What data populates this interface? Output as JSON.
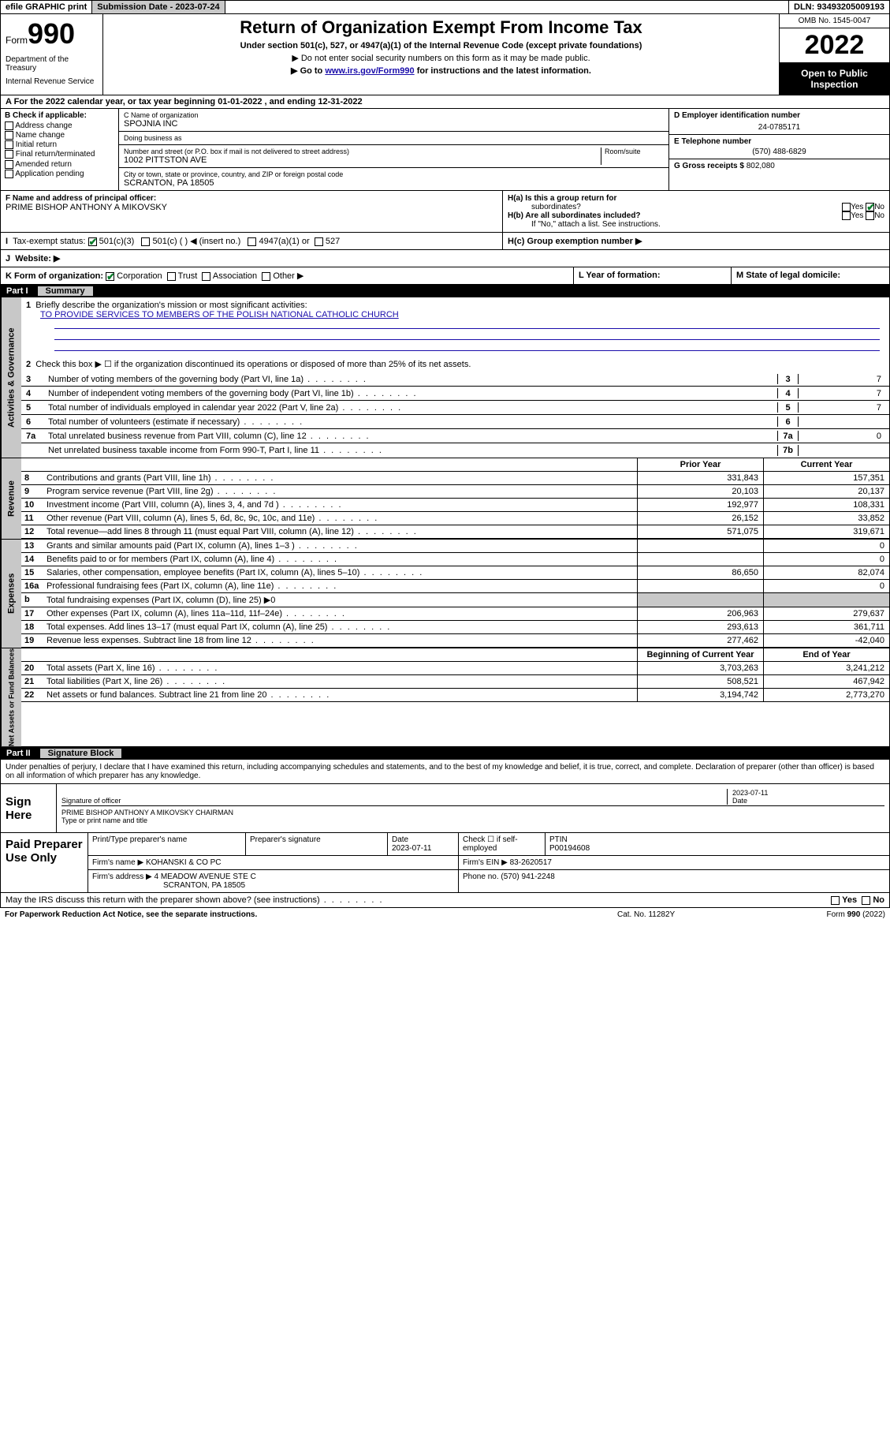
{
  "colors": {
    "accent_green": "#0a7d2c",
    "link": "#1a0dab",
    "gray_btn": "#c8c8c8",
    "black": "#000000",
    "white": "#ffffff"
  },
  "topbar": {
    "efile": "efile GRAPHIC print",
    "submission_label": "Submission Date - 2023-07-24",
    "dln": "DLN: 93493205009193"
  },
  "header": {
    "form_word": "Form",
    "form_number": "990",
    "dept": "Department of the Treasury",
    "irs": "Internal Revenue Service",
    "title": "Return of Organization Exempt From Income Tax",
    "subtitle": "Under section 501(c), 527, or 4947(a)(1) of the Internal Revenue Code (except private foundations)",
    "note1": "▶ Do not enter social security numbers on this form as it may be made public.",
    "note2_pre": "▶ Go to ",
    "note2_link": "www.irs.gov/Form990",
    "note2_post": " for instructions and the latest information.",
    "omb": "OMB No. 1545-0047",
    "year": "2022",
    "open": "Open to Public Inspection"
  },
  "lineA": "A For the 2022 calendar year, or tax year beginning 01-01-2022     , and ending 12-31-2022",
  "sectionB": {
    "label": "B Check if applicable:",
    "opts": [
      "Address change",
      "Name change",
      "Initial return",
      "Final return/terminated",
      "Amended return",
      "Application pending"
    ]
  },
  "sectionC": {
    "name_label": "C Name of organization",
    "name": "SPOJNIA INC",
    "dba_label": "Doing business as",
    "addr_label": "Number and street (or P.O. box if mail is not delivered to street address)",
    "room_label": "Room/suite",
    "addr": "1002 PITTSTON AVE",
    "city_label": "City or town, state or province, country, and ZIP or foreign postal code",
    "city": "SCRANTON, PA  18505"
  },
  "sectionD": {
    "label": "D Employer identification number",
    "val": "24-0785171"
  },
  "sectionE": {
    "label": "E Telephone number",
    "val": "(570) 488-6829"
  },
  "sectionG": {
    "label": "G Gross receipts $",
    "val": "802,080"
  },
  "sectionF": {
    "label": "F Name and address of principal officer:",
    "val": "PRIME BISHOP ANTHONY A MIKOVSKY"
  },
  "sectionH": {
    "a_label": "H(a)  Is this a group return for",
    "a_label2": "subordinates?",
    "a_yes": "Yes",
    "a_no": "No",
    "b_label": "H(b)  Are all subordinates included?",
    "b_yes": "Yes",
    "b_no": "No",
    "b_note": "If \"No,\" attach a list. See instructions.",
    "c_label": "H(c)  Group exemption number ▶"
  },
  "sectionI": {
    "label": "Tax-exempt status:",
    "opts": [
      "501(c)(3)",
      "501(c) (    ) ◀ (insert no.)",
      "4947(a)(1) or",
      "527"
    ]
  },
  "sectionJ": {
    "label": "Website: ▶"
  },
  "sectionK": {
    "label": "K Form of organization:",
    "opts": [
      "Corporation",
      "Trust",
      "Association",
      "Other ▶"
    ]
  },
  "sectionL": {
    "label": "L Year of formation:"
  },
  "sectionM": {
    "label": "M State of legal domicile:"
  },
  "partI": {
    "part": "Part I",
    "title": "Summary",
    "q1_label": "1",
    "q1_text": "Briefly describe the organization's mission or most significant activities:",
    "q1_mission": "TO PROVIDE SERVICES TO MEMBERS OF THE POLISH NATIONAL CATHOLIC CHURCH",
    "q2_label": "2",
    "q2_text": "Check this box ▶ ☐  if the organization discontinued its operations or disposed of more than 25% of its net assets.",
    "rows_gov": [
      {
        "n": "3",
        "t": "Number of voting members of the governing body (Part VI, line 1a)",
        "box": "3",
        "v": "7"
      },
      {
        "n": "4",
        "t": "Number of independent voting members of the governing body (Part VI, line 1b)",
        "box": "4",
        "v": "7"
      },
      {
        "n": "5",
        "t": "Total number of individuals employed in calendar year 2022 (Part V, line 2a)",
        "box": "5",
        "v": "7"
      },
      {
        "n": "6",
        "t": "Total number of volunteers (estimate if necessary)",
        "box": "6",
        "v": ""
      },
      {
        "n": "7a",
        "t": "Total unrelated business revenue from Part VIII, column (C), line 12",
        "box": "7a",
        "v": "0"
      },
      {
        "n": "",
        "t": "Net unrelated business taxable income from Form 990-T, Part I, line 11",
        "box": "7b",
        "v": ""
      }
    ],
    "col_prior": "Prior Year",
    "col_current": "Current Year",
    "rows_rev": [
      {
        "n": "8",
        "t": "Contributions and grants (Part VIII, line 1h)",
        "p": "331,843",
        "c": "157,351"
      },
      {
        "n": "9",
        "t": "Program service revenue (Part VIII, line 2g)",
        "p": "20,103",
        "c": "20,137"
      },
      {
        "n": "10",
        "t": "Investment income (Part VIII, column (A), lines 3, 4, and 7d )",
        "p": "192,977",
        "c": "108,331"
      },
      {
        "n": "11",
        "t": "Other revenue (Part VIII, column (A), lines 5, 6d, 8c, 9c, 10c, and 11e)",
        "p": "26,152",
        "c": "33,852"
      },
      {
        "n": "12",
        "t": "Total revenue—add lines 8 through 11 (must equal Part VIII, column (A), line 12)",
        "p": "571,075",
        "c": "319,671"
      }
    ],
    "rows_exp": [
      {
        "n": "13",
        "t": "Grants and similar amounts paid (Part IX, column (A), lines 1–3 )",
        "p": "",
        "c": "0"
      },
      {
        "n": "14",
        "t": "Benefits paid to or for members (Part IX, column (A), line 4)",
        "p": "",
        "c": "0"
      },
      {
        "n": "15",
        "t": "Salaries, other compensation, employee benefits (Part IX, column (A), lines 5–10)",
        "p": "86,650",
        "c": "82,074"
      },
      {
        "n": "16a",
        "t": "Professional fundraising fees (Part IX, column (A), line 11e)",
        "p": "",
        "c": "0"
      },
      {
        "n": "b",
        "t": "Total fundraising expenses (Part IX, column (D), line 25) ▶0",
        "p": "—",
        "c": "—"
      },
      {
        "n": "17",
        "t": "Other expenses (Part IX, column (A), lines 11a–11d, 11f–24e)",
        "p": "206,963",
        "c": "279,637"
      },
      {
        "n": "18",
        "t": "Total expenses. Add lines 13–17 (must equal Part IX, column (A), line 25)",
        "p": "293,613",
        "c": "361,711"
      },
      {
        "n": "19",
        "t": "Revenue less expenses. Subtract line 18 from line 12",
        "p": "277,462",
        "c": "-42,040"
      }
    ],
    "col_begin": "Beginning of Current Year",
    "col_end": "End of Year",
    "rows_net": [
      {
        "n": "20",
        "t": "Total assets (Part X, line 16)",
        "p": "3,703,263",
        "c": "3,241,212"
      },
      {
        "n": "21",
        "t": "Total liabilities (Part X, line 26)",
        "p": "508,521",
        "c": "467,942"
      },
      {
        "n": "22",
        "t": "Net assets or fund balances. Subtract line 21 from line 20",
        "p": "3,194,742",
        "c": "2,773,270"
      }
    ],
    "vtab_gov": "Activities & Governance",
    "vtab_rev": "Revenue",
    "vtab_exp": "Expenses",
    "vtab_net": "Net Assets or Fund Balances"
  },
  "partII": {
    "part": "Part II",
    "title": "Signature Block",
    "declaration": "Under penalties of perjury, I declare that I have examined this return, including accompanying schedules and statements, and to the best of my knowledge and belief, it is true, correct, and complete. Declaration of preparer (other than officer) is based on all information of which preparer has any knowledge.",
    "sign_here": "Sign Here",
    "sig_officer": "Signature of officer",
    "sig_date_label": "Date",
    "sig_date": "2023-07-11",
    "officer_name": "PRIME BISHOP ANTHONY A MIKOVSKY CHAIRMAN",
    "officer_label": "Type or print name and title",
    "paid_prep": "Paid Preparer Use Only",
    "prep_name_label": "Print/Type preparer's name",
    "prep_sig_label": "Preparer's signature",
    "prep_date_label": "Date",
    "prep_date": "2023-07-11",
    "prep_check_label": "Check ☐ if self-employed",
    "ptin_label": "PTIN",
    "ptin": "P00194608",
    "firm_name_label": "Firm's name    ▶",
    "firm_name": "KOHANSKI & CO PC",
    "firm_ein_label": "Firm's EIN ▶",
    "firm_ein": "83-2620517",
    "firm_addr_label": "Firm's address ▶",
    "firm_addr1": "4 MEADOW AVENUE STE C",
    "firm_addr2": "SCRANTON, PA  18505",
    "phone_label": "Phone no.",
    "phone": "(570) 941-2248",
    "discuss": "May the IRS discuss this return with the preparer shown above? (see instructions)",
    "yes": "Yes",
    "no": "No"
  },
  "footer": {
    "pra": "For Paperwork Reduction Act Notice, see the separate instructions.",
    "cat": "Cat. No. 11282Y",
    "form": "Form 990 (2022)"
  }
}
